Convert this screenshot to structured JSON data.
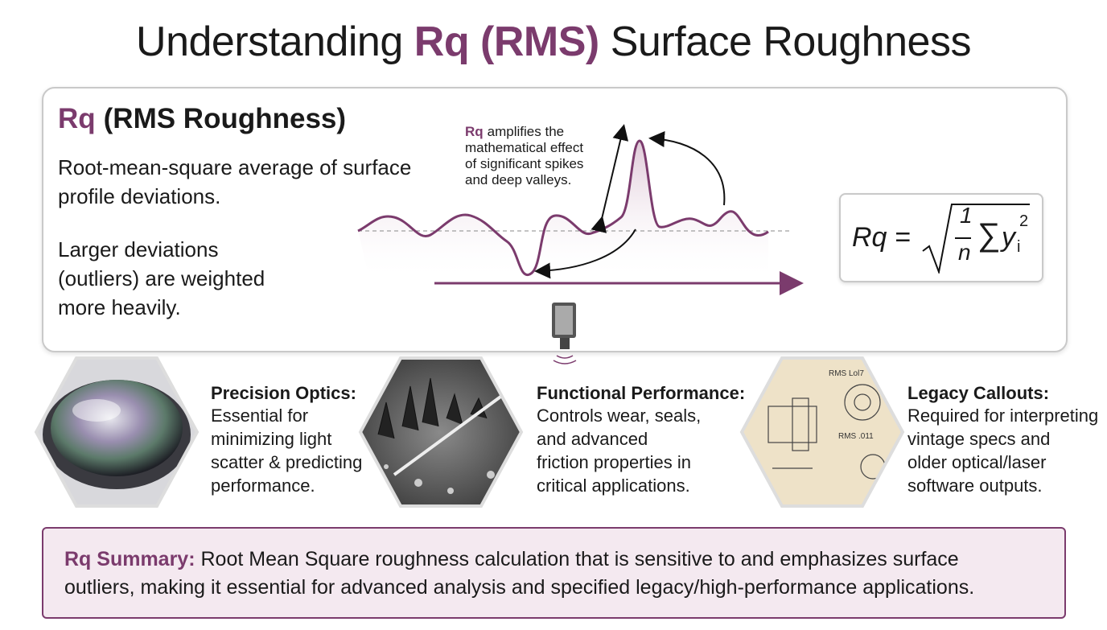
{
  "header": {
    "title_parts": [
      "Understanding",
      "Rq (RMS)",
      "Surface Roughness"
    ]
  },
  "definition": {
    "symbol": "Rq",
    "heading": "(RMS Roughness)",
    "paragraphs": [
      [
        "Root-mean-square average of surface",
        "profile deviations."
      ],
      [
        "Larger deviations",
        "(outliers) are weighted",
        "more heavily."
      ]
    ]
  },
  "diagram": {
    "annotation_symbol": "Rq",
    "annotation_lines": [
      "amplifies the",
      "mathematical effect",
      "of significant spikes",
      "and deep valleys."
    ]
  },
  "formula": {
    "lhs": "Rq =",
    "numerator": "1",
    "denominator": "n",
    "sum": "∑",
    "variable": "y",
    "subscript": "i",
    "exponent": "2"
  },
  "cards": [
    {
      "title": "Precision Optics:",
      "lines": [
        "Essential for",
        "minimizing light",
        "scatter & predicting",
        "performance."
      ]
    },
    {
      "title": "Functional Performance:",
      "lines": [
        "Controls wear, seals,",
        "and advanced",
        "friction properties in",
        "critical applications."
      ]
    },
    {
      "title": "Legacy Callouts:",
      "lines": [
        "Required for interpreting",
        "vintage specs and",
        "older optical/laser",
        "software outputs."
      ]
    }
  ],
  "drawing_labels": [
    "RMS Lol7",
    "RMS .011"
  ],
  "summary": {
    "label": "Rq Summary:",
    "lines": [
      "Root Mean Square roughness calculation that is sensitive to and emphasizes surface",
      "outliers, making it essential for advanced analysis and specified legacy/high-performance applications."
    ]
  }
}
